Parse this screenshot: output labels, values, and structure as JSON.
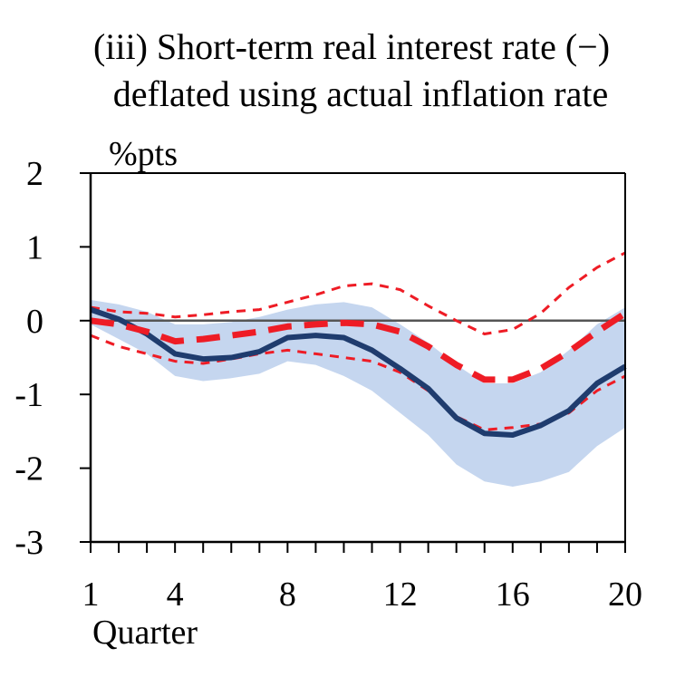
{
  "chart_data": {
    "type": "line",
    "title": "(iii) Short-term real interest rate (−)",
    "subtitle": "deflated using actual inflation rate",
    "ylabel": "%pts",
    "xlabel": "Quarter",
    "xlim": [
      1,
      20
    ],
    "ylim": [
      -3,
      2
    ],
    "x_ticks": [
      1,
      4,
      8,
      12,
      16,
      20
    ],
    "y_ticks": [
      2,
      1,
      0,
      -1,
      -2,
      -3
    ],
    "x": [
      1,
      2,
      3,
      4,
      5,
      6,
      7,
      8,
      9,
      10,
      11,
      12,
      13,
      14,
      15,
      16,
      17,
      18,
      19,
      20
    ],
    "series": [
      {
        "role": "band",
        "color": "#c5d6ef",
        "upper": [
          0.28,
          0.22,
          0.12,
          -0.05,
          -0.05,
          -0.02,
          0.05,
          0.15,
          0.22,
          0.25,
          0.18,
          -0.05,
          -0.3,
          -0.6,
          -0.85,
          -0.85,
          -0.7,
          -0.4,
          -0.05,
          0.18
        ],
        "lower": [
          -0.05,
          -0.25,
          -0.45,
          -0.75,
          -0.82,
          -0.78,
          -0.72,
          -0.55,
          -0.6,
          -0.75,
          -0.95,
          -1.25,
          -1.55,
          -1.95,
          -2.18,
          -2.25,
          -2.18,
          -2.05,
          -1.7,
          -1.45
        ]
      },
      {
        "role": "median",
        "color": "#1f3c6e",
        "values": [
          0.15,
          0.02,
          -0.18,
          -0.45,
          -0.52,
          -0.5,
          -0.42,
          -0.23,
          -0.2,
          -0.23,
          -0.4,
          -0.65,
          -0.92,
          -1.32,
          -1.53,
          -1.55,
          -1.42,
          -1.22,
          -0.85,
          -0.62
        ]
      },
      {
        "role": "alt-median",
        "color": "#ee1c25",
        "values": [
          0.0,
          -0.05,
          -0.15,
          -0.28,
          -0.25,
          -0.2,
          -0.15,
          -0.08,
          -0.05,
          -0.03,
          -0.05,
          -0.15,
          -0.35,
          -0.6,
          -0.8,
          -0.8,
          -0.65,
          -0.42,
          -0.15,
          0.1
        ]
      },
      {
        "role": "alt-upper",
        "color": "#ee1c25",
        "values": [
          0.18,
          0.12,
          0.1,
          0.05,
          0.08,
          0.12,
          0.15,
          0.25,
          0.35,
          0.47,
          0.5,
          0.42,
          0.2,
          0.0,
          -0.18,
          -0.12,
          0.1,
          0.45,
          0.72,
          0.92
        ]
      },
      {
        "role": "alt-lower",
        "color": "#ee1c25",
        "values": [
          -0.2,
          -0.35,
          -0.45,
          -0.55,
          -0.58,
          -0.52,
          -0.45,
          -0.4,
          -0.45,
          -0.5,
          -0.55,
          -0.7,
          -0.95,
          -1.3,
          -1.48,
          -1.45,
          -1.4,
          -1.25,
          -0.95,
          -0.75
        ]
      }
    ],
    "zero_line": true,
    "grid": false
  }
}
